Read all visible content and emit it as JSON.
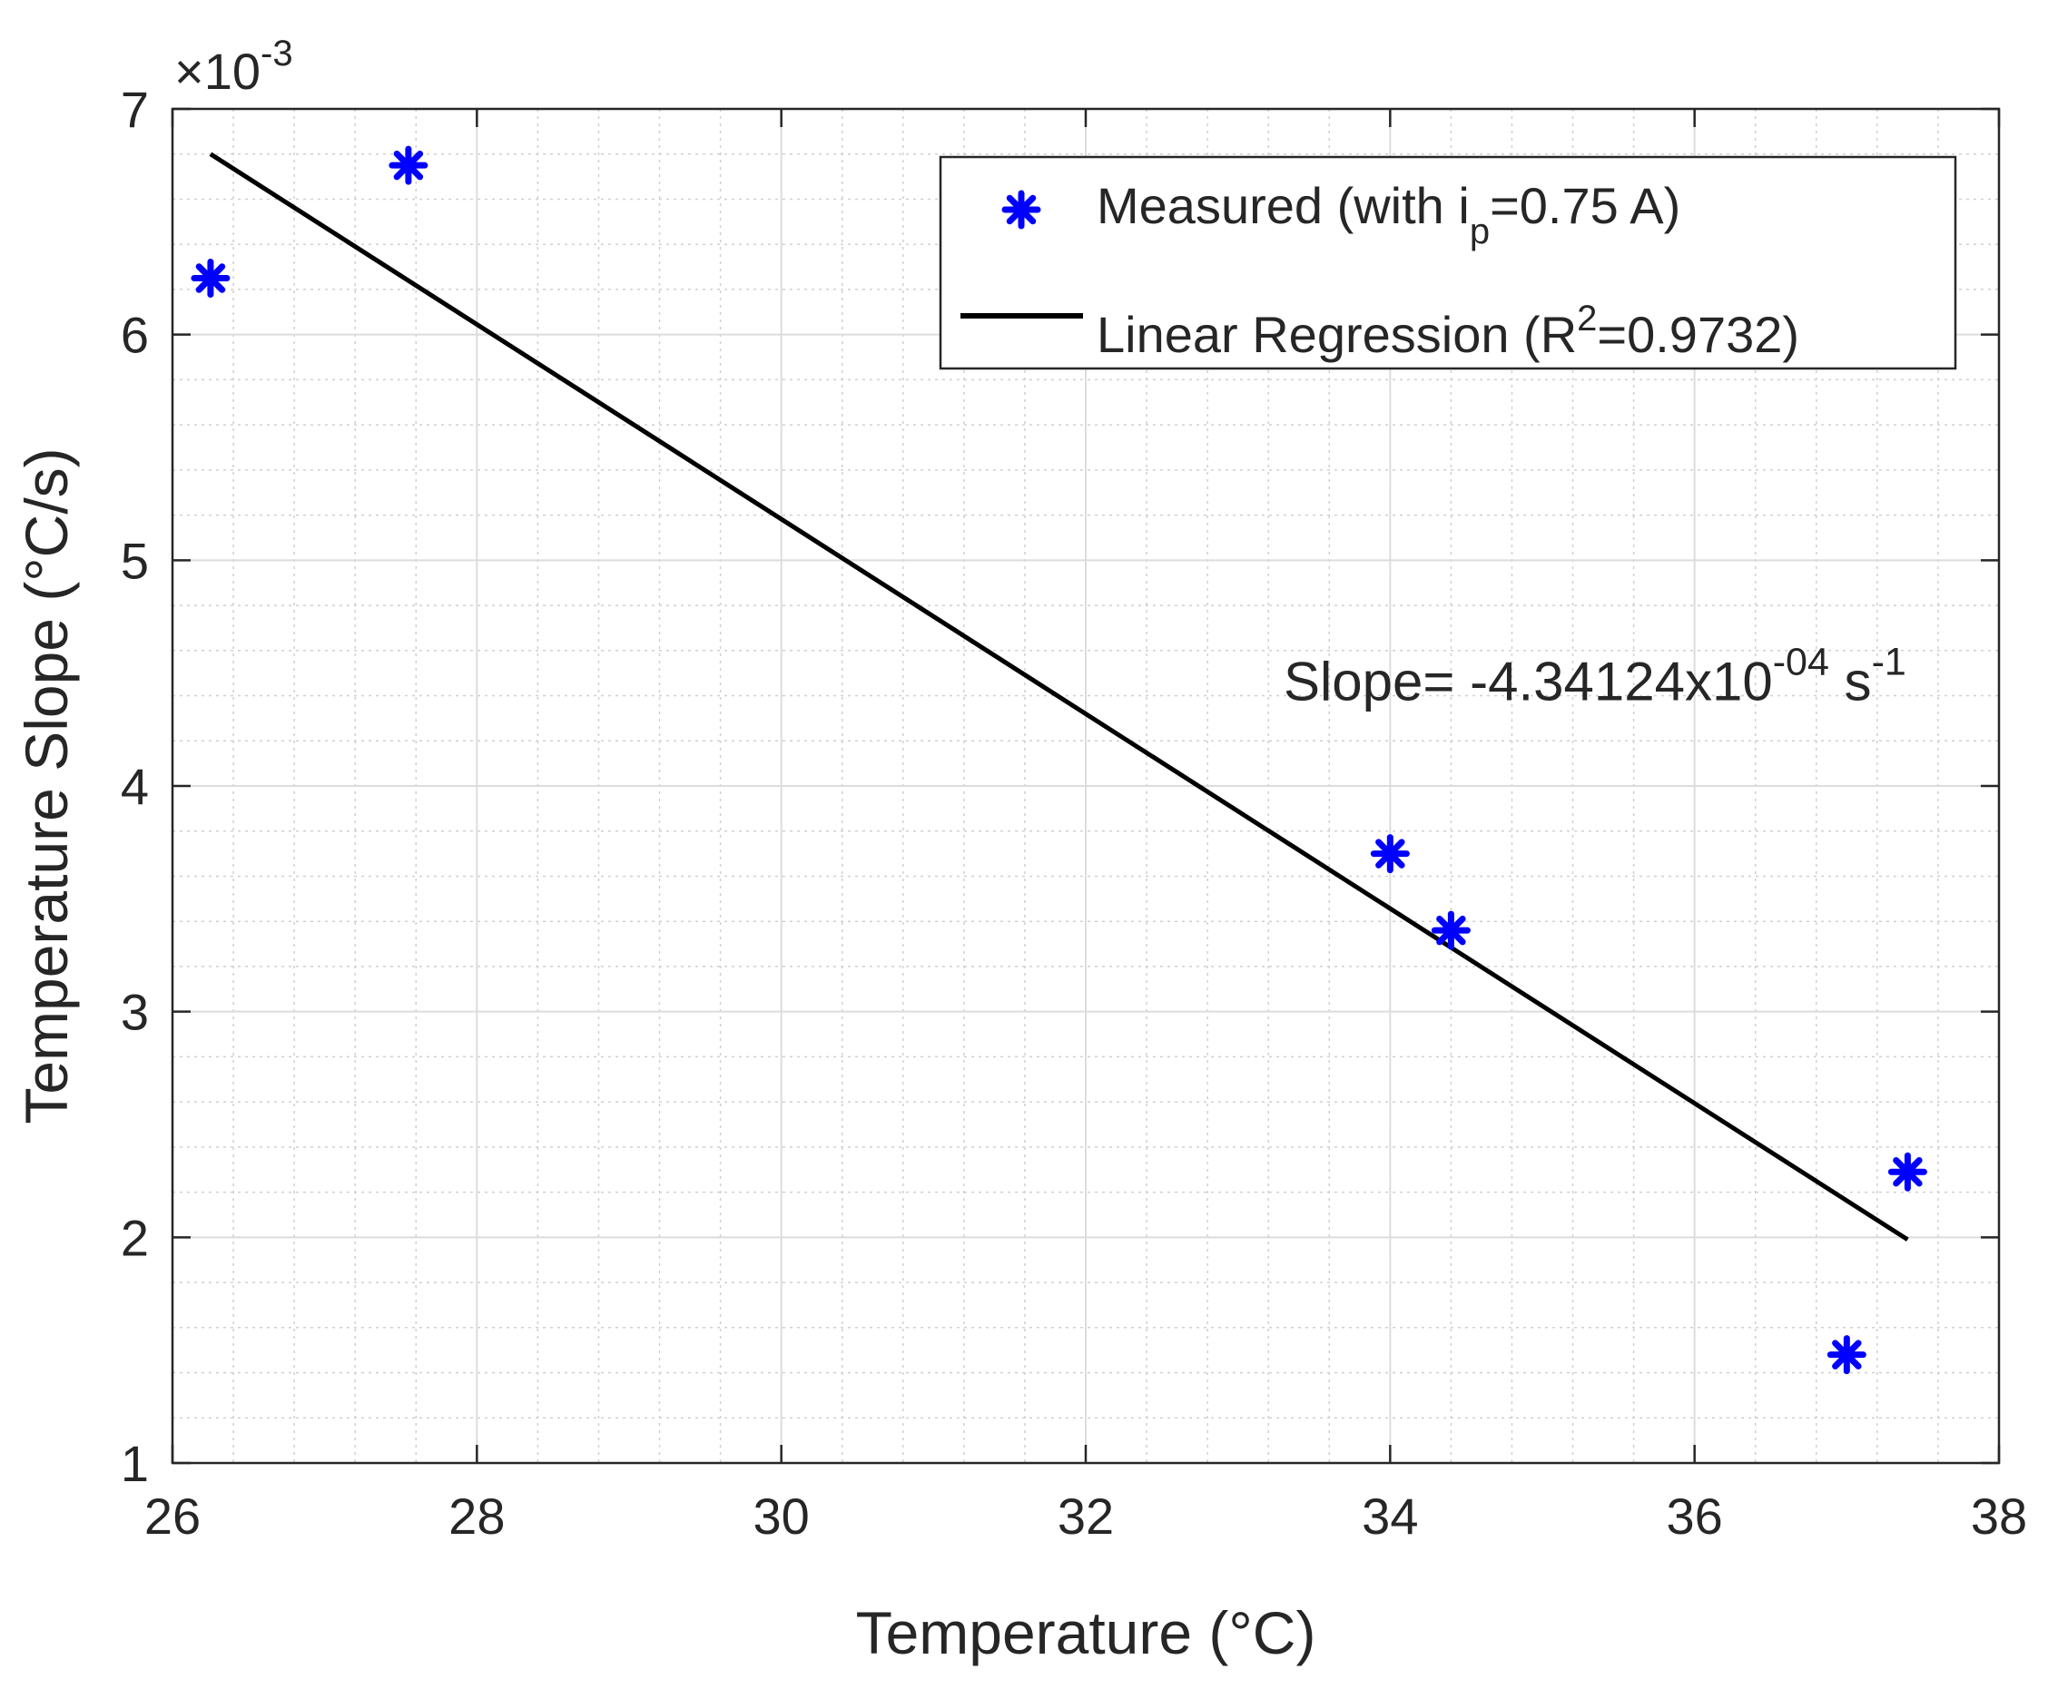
{
  "chart_data": {
    "type": "scatter",
    "xlabel": "Temperature (°C)",
    "ylabel": "Temperature Slope (°C/s)",
    "xlim": [
      26,
      38
    ],
    "ylim": [
      1,
      7
    ],
    "y_exponent_label": {
      "multiplier": "×10",
      "exponent": "-3"
    },
    "grid": true,
    "minor_grid": true,
    "x_ticks": [
      26,
      28,
      30,
      32,
      34,
      36,
      38
    ],
    "y_ticks": [
      1,
      2,
      3,
      4,
      5,
      6,
      7
    ],
    "series": [
      {
        "name": "Measured (with i_p=0.75 A)",
        "kind": "scatter",
        "marker": "asterisk",
        "color": "#0000ff",
        "points": [
          {
            "x": 26.25,
            "y": 6.25
          },
          {
            "x": 27.55,
            "y": 6.75
          },
          {
            "x": 34.0,
            "y": 3.7
          },
          {
            "x": 34.4,
            "y": 3.36
          },
          {
            "x": 37.0,
            "y": 1.48
          },
          {
            "x": 37.4,
            "y": 2.29
          }
        ]
      },
      {
        "name": "Linear Regression (R^2=0.9732)",
        "kind": "line",
        "color": "#000000",
        "points": [
          {
            "x": 26.25,
            "y": 6.8
          },
          {
            "x": 37.4,
            "y": 1.99
          }
        ]
      }
    ],
    "legend": {
      "position": "top-right",
      "entries": [
        {
          "base": "Measured (with i",
          "sub": "p",
          "tail": "=0.75 A)"
        },
        {
          "base": "Linear Regression (R",
          "sup": "2",
          "tail": "=0.9732)"
        }
      ]
    },
    "annotation": {
      "base": "Slope= -4.34124x10",
      "sup1": "-04",
      "mid": " s",
      "sup2": "-1",
      "x": 33.3,
      "y": 4.38
    }
  }
}
